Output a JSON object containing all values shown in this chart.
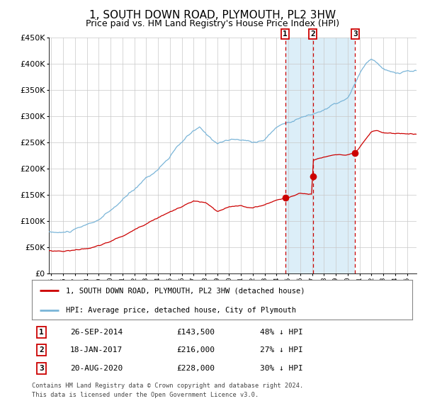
{
  "title": "1, SOUTH DOWN ROAD, PLYMOUTH, PL2 3HW",
  "subtitle": "Price paid vs. HM Land Registry's House Price Index (HPI)",
  "legend_line1": "1, SOUTH DOWN ROAD, PLYMOUTH, PL2 3HW (detached house)",
  "legend_line2": "HPI: Average price, detached house, City of Plymouth",
  "footer1": "Contains HM Land Registry data © Crown copyright and database right 2024.",
  "footer2": "This data is licensed under the Open Government Licence v3.0.",
  "transactions": [
    {
      "num": 1,
      "date": "26-SEP-2014",
      "price": 143500,
      "price_str": "£143,500",
      "hpi_diff": "48% ↓ HPI",
      "year": 2014.73
    },
    {
      "num": 2,
      "date": "18-JAN-2017",
      "price": 216000,
      "price_str": "£216,000",
      "hpi_diff": "27% ↓ HPI",
      "year": 2017.05
    },
    {
      "num": 3,
      "date": "20-AUG-2020",
      "price": 228000,
      "price_str": "£228,000",
      "hpi_diff": "30% ↓ HPI",
      "year": 2020.63
    }
  ],
  "hpi_color": "#7ab5d8",
  "price_color": "#cc0000",
  "background_color": "#ffffff",
  "shaded_bg_color": "#dceef8",
  "grid_color": "#c8c8c8",
  "ylim": [
    0,
    450000
  ],
  "yticks": [
    0,
    50000,
    100000,
    150000,
    200000,
    250000,
    300000,
    350000,
    400000,
    450000
  ],
  "xlim_start": 1994.8,
  "xlim_end": 2025.8,
  "title_fontsize": 11,
  "subtitle_fontsize": 9
}
